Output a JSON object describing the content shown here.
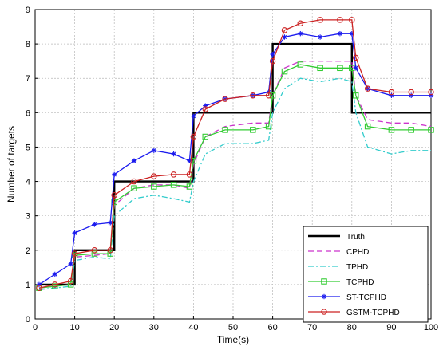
{
  "chart_data": {
    "type": "line",
    "title": "",
    "xlabel": "Time(s)",
    "ylabel": "Number of targets",
    "xlim": [
      0,
      100
    ],
    "ylim": [
      0,
      9
    ],
    "xticks": [
      0,
      10,
      20,
      30,
      40,
      50,
      60,
      70,
      80,
      90,
      100
    ],
    "yticks": [
      0,
      1,
      2,
      3,
      4,
      5,
      6,
      7,
      8,
      9
    ],
    "grid": true,
    "legend_position": "bottom-right",
    "series": [
      {
        "name": "Truth",
        "color": "#000000",
        "style": "solid",
        "marker": "none",
        "x": [
          1,
          10,
          10,
          20,
          20,
          40,
          40,
          60,
          60,
          80,
          80,
          100
        ],
        "y": [
          1,
          1,
          2,
          2,
          4,
          4,
          6,
          6,
          8,
          8,
          6,
          6
        ]
      },
      {
        "name": "CPHD",
        "color": "#cc33cc",
        "style": "dashed",
        "marker": "none",
        "x": [
          1,
          5,
          9,
          10,
          15,
          19,
          20,
          25,
          30,
          35,
          39,
          40,
          43,
          48,
          55,
          59,
          60,
          63,
          67,
          72,
          77,
          80,
          81,
          84,
          90,
          95,
          100
        ],
        "y": [
          0.9,
          0.95,
          1.0,
          1.8,
          1.85,
          1.9,
          3.3,
          3.8,
          3.9,
          3.9,
          3.8,
          4.5,
          5.3,
          5.6,
          5.7,
          5.7,
          6.5,
          7.3,
          7.5,
          7.5,
          7.5,
          7.5,
          6.5,
          5.8,
          5.7,
          5.7,
          5.6
        ]
      },
      {
        "name": "TPHD",
        "color": "#33cccc",
        "style": "dashdot",
        "marker": "none",
        "x": [
          1,
          5,
          9,
          10,
          15,
          19,
          20,
          25,
          30,
          35,
          39,
          40,
          43,
          48,
          55,
          59,
          60,
          63,
          67,
          72,
          77,
          80,
          81,
          84,
          90,
          95,
          100
        ],
        "y": [
          0.85,
          0.9,
          0.95,
          1.7,
          1.8,
          1.75,
          3.0,
          3.5,
          3.6,
          3.5,
          3.4,
          4.0,
          4.8,
          5.1,
          5.1,
          5.2,
          6.0,
          6.7,
          7.0,
          6.9,
          7.0,
          6.9,
          6.0,
          5.0,
          4.8,
          4.9,
          4.9
        ]
      },
      {
        "name": "TCPHD",
        "color": "#33cc33",
        "style": "solid",
        "marker": "square",
        "x": [
          1,
          5,
          9,
          10,
          15,
          19,
          20,
          25,
          30,
          35,
          39,
          40,
          43,
          48,
          55,
          59,
          60,
          63,
          67,
          72,
          77,
          80,
          81,
          84,
          90,
          95,
          100
        ],
        "y": [
          0.9,
          0.95,
          1.0,
          1.85,
          1.9,
          1.9,
          3.4,
          3.8,
          3.85,
          3.9,
          3.85,
          4.6,
          5.3,
          5.5,
          5.5,
          5.6,
          6.5,
          7.2,
          7.4,
          7.3,
          7.3,
          7.3,
          6.5,
          5.6,
          5.5,
          5.5,
          5.5
        ]
      },
      {
        "name": "ST-TCPHD",
        "color": "#1a1aee",
        "style": "solid",
        "marker": "star",
        "x": [
          1,
          5,
          9,
          10,
          15,
          19,
          20,
          25,
          30,
          35,
          39,
          40,
          43,
          48,
          55,
          59,
          60,
          63,
          67,
          72,
          77,
          80,
          81,
          84,
          90,
          95,
          100
        ],
        "y": [
          1.0,
          1.3,
          1.6,
          2.5,
          2.75,
          2.8,
          4.2,
          4.6,
          4.9,
          4.8,
          4.6,
          5.9,
          6.2,
          6.4,
          6.5,
          6.6,
          7.7,
          8.2,
          8.3,
          8.2,
          8.3,
          8.3,
          7.3,
          6.7,
          6.5,
          6.5,
          6.5
        ]
      },
      {
        "name": "GSTM-TCPHD",
        "color": "#cc2222",
        "style": "solid",
        "marker": "circle",
        "x": [
          1,
          5,
          9,
          10,
          15,
          19,
          20,
          25,
          30,
          35,
          39,
          40,
          43,
          48,
          55,
          59,
          60,
          63,
          67,
          72,
          77,
          80,
          81,
          84,
          90,
          95,
          100
        ],
        "y": [
          0.9,
          1.0,
          1.1,
          1.9,
          2.0,
          2.0,
          3.6,
          4.0,
          4.15,
          4.2,
          4.2,
          5.3,
          6.1,
          6.4,
          6.5,
          6.5,
          7.5,
          8.4,
          8.6,
          8.7,
          8.7,
          8.7,
          7.6,
          6.7,
          6.6,
          6.6,
          6.6
        ]
      }
    ]
  }
}
